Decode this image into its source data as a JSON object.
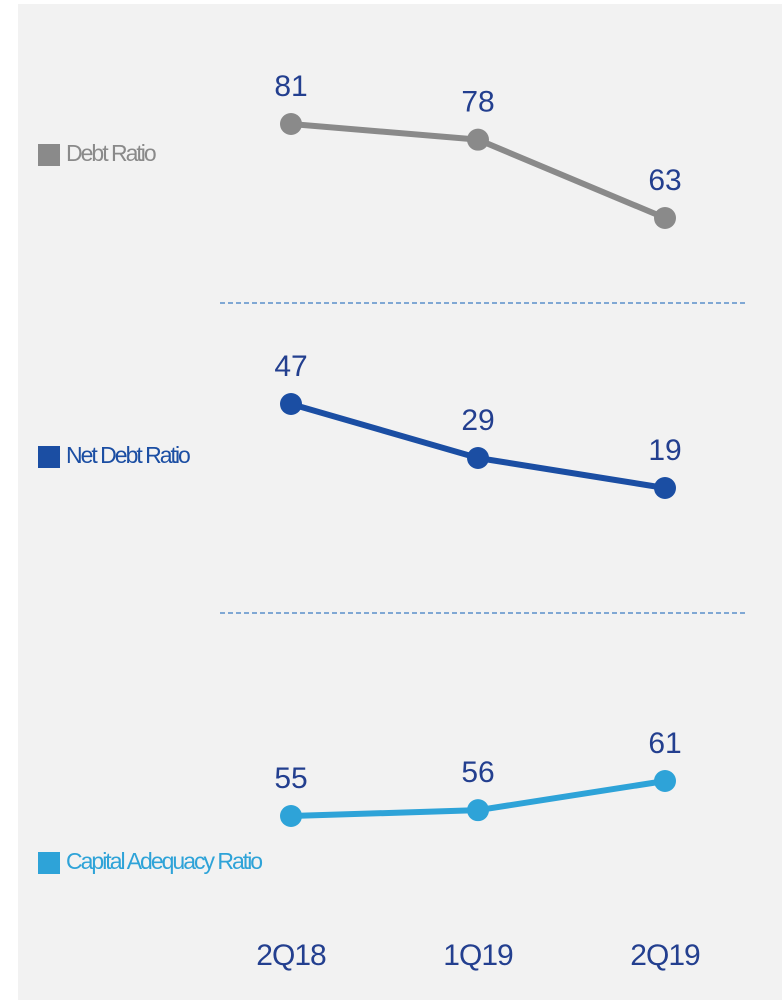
{
  "chart_data": {
    "type": "line",
    "categories": [
      "2Q18",
      "1Q19",
      "2Q19"
    ],
    "series": [
      {
        "name": "Debt Ratio",
        "color": "#8a8a8a",
        "values": [
          81,
          78,
          63
        ]
      },
      {
        "name": "Net Debt Ratio",
        "color": "#1b4ea3",
        "values": [
          47,
          29,
          19
        ]
      },
      {
        "name": "Capital Adequacy Ratio",
        "color": "#2ea3d8",
        "values": [
          55,
          56,
          61
        ]
      }
    ]
  }
}
